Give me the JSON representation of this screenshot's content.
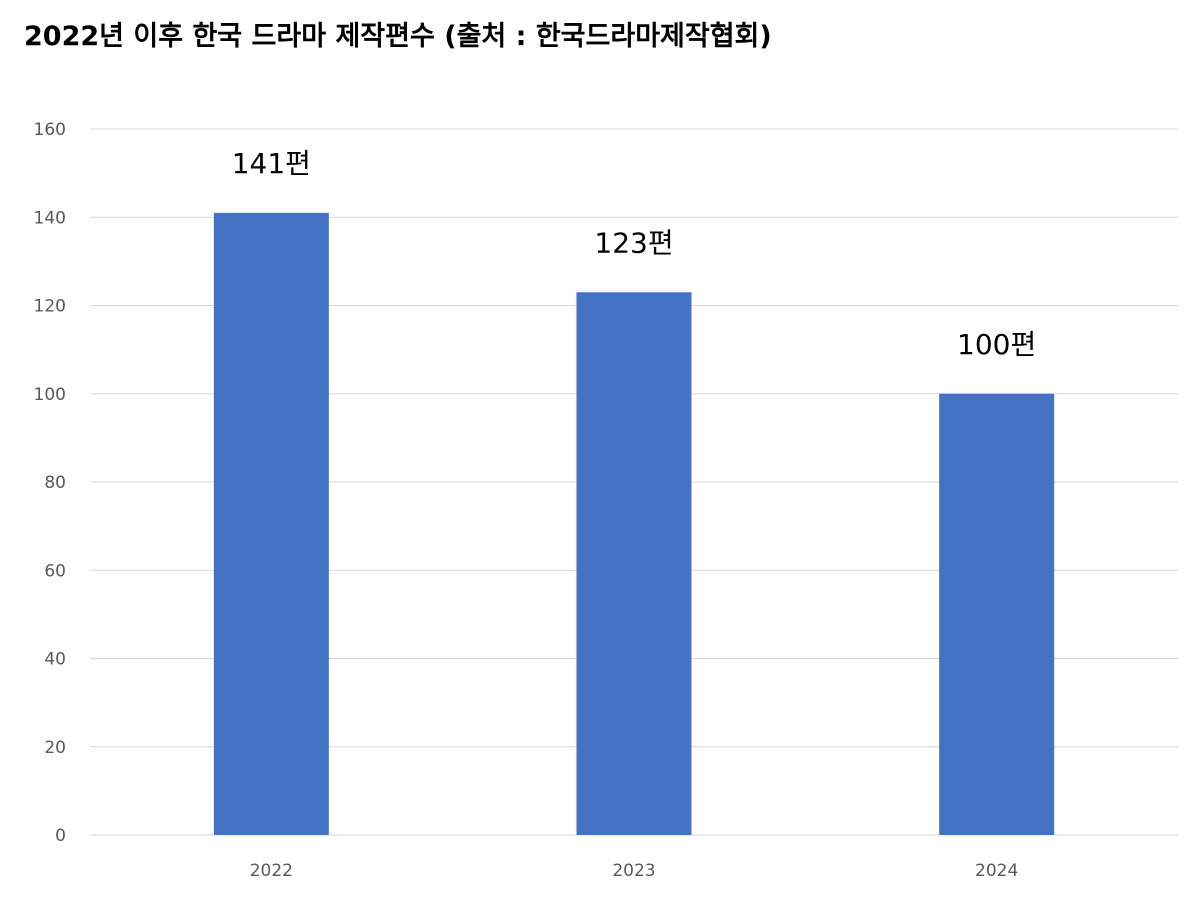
{
  "chart_data": {
    "type": "bar",
    "title": "2022년 이후 한국 드라마 제작편수  (출처 : 한국드라마제작협회)",
    "categories": [
      "2022",
      "2023",
      "2024"
    ],
    "values": [
      141,
      123,
      100
    ],
    "data_labels": [
      "141편",
      "123편",
      "100편"
    ],
    "y_ticks": [
      "0",
      "20",
      "40",
      "60",
      "80",
      "100",
      "120",
      "140",
      "160"
    ],
    "ylim": [
      0,
      160
    ],
    "grid": true,
    "legend": "none",
    "bar_color": "#4472C4",
    "grid_color": "#D9D9D9"
  }
}
